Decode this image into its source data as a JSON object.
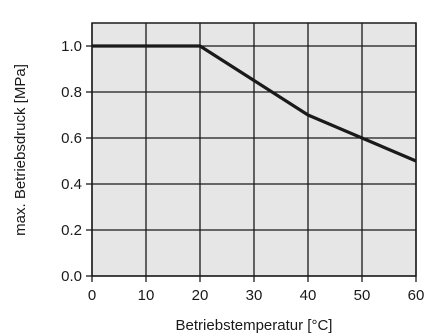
{
  "chart_data": {
    "type": "line",
    "xlabel": "Betriebstemperatur [°C]",
    "ylabel": "max. Betriebsdruck [MPa]",
    "xlim": [
      0,
      60
    ],
    "ylim": [
      0.0,
      1.1
    ],
    "x_ticks": [
      0,
      10,
      20,
      30,
      40,
      50,
      60
    ],
    "y_ticks": [
      0.0,
      0.2,
      0.4,
      0.6,
      0.8,
      1.0
    ],
    "x_tick_labels": [
      "0",
      "10",
      "20",
      "30",
      "40",
      "50",
      "60"
    ],
    "y_tick_labels": [
      "0.0",
      "0.2",
      "0.4",
      "0.6",
      "0.8",
      "1.0"
    ],
    "grid": true,
    "plot_background": "#e6e6e6",
    "line_color": "#1a1a1a",
    "series": [
      {
        "x": [
          0,
          20,
          30,
          40,
          50,
          60
        ],
        "y": [
          1.0,
          1.0,
          0.85,
          0.7,
          0.6,
          0.5
        ]
      }
    ]
  }
}
